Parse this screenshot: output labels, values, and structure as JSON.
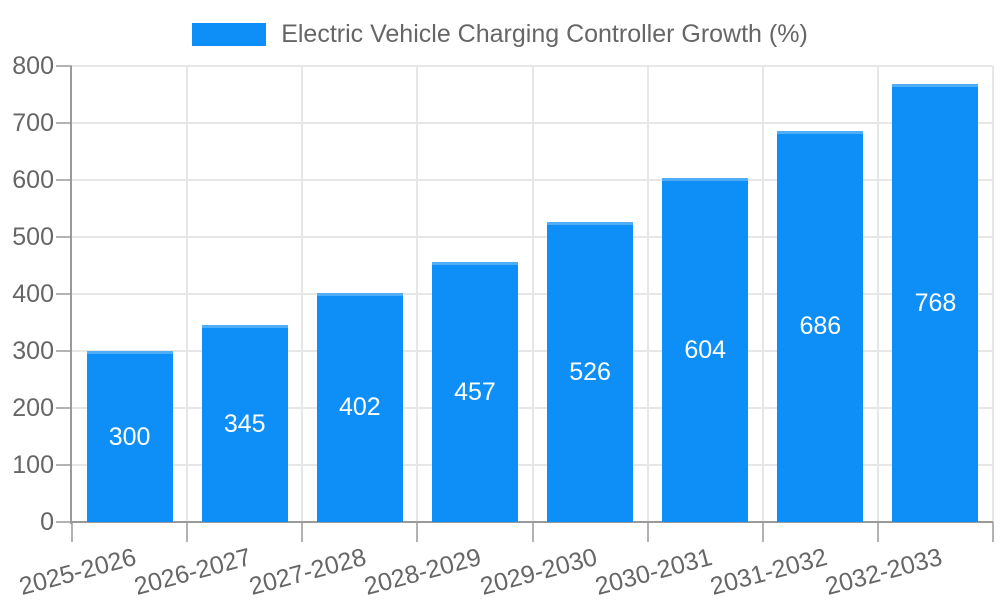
{
  "chart_data": {
    "type": "bar",
    "title": "Electric Vehicle Charging Controller Growth (%)",
    "legend": {
      "position": "top",
      "label": "Electric Vehicle Charging Controller Growth (%)"
    },
    "categories": [
      "2025-2026",
      "2026-2027",
      "2027-2028",
      "2028-2029",
      "2029-2030",
      "2030-2031",
      "2031-2032",
      "2032-2033"
    ],
    "series": [
      {
        "name": "Electric Vehicle Charging Controller Growth (%)",
        "values": [
          300,
          345,
          402,
          457,
          526,
          604,
          686,
          768
        ]
      }
    ],
    "xlabel": "",
    "ylabel": "",
    "ylim": [
      0,
      800
    ],
    "yticks": [
      0,
      100,
      200,
      300,
      400,
      500,
      600,
      700,
      800
    ],
    "grid": true,
    "x_tick_rotation_deg": -15,
    "value_labels": "inside-center",
    "colors": {
      "bar": "#0d8ff7",
      "bar_top_edge": "rgba(255,255,255,0.28)",
      "value_label": "#ffffff",
      "axis_line": "#9a9a9a",
      "tick_mark": "#b3b3b3",
      "gridline": "#e7e7e7",
      "tick_text": "#666666",
      "legend_text": "#666666",
      "background": "#ffffff"
    }
  }
}
